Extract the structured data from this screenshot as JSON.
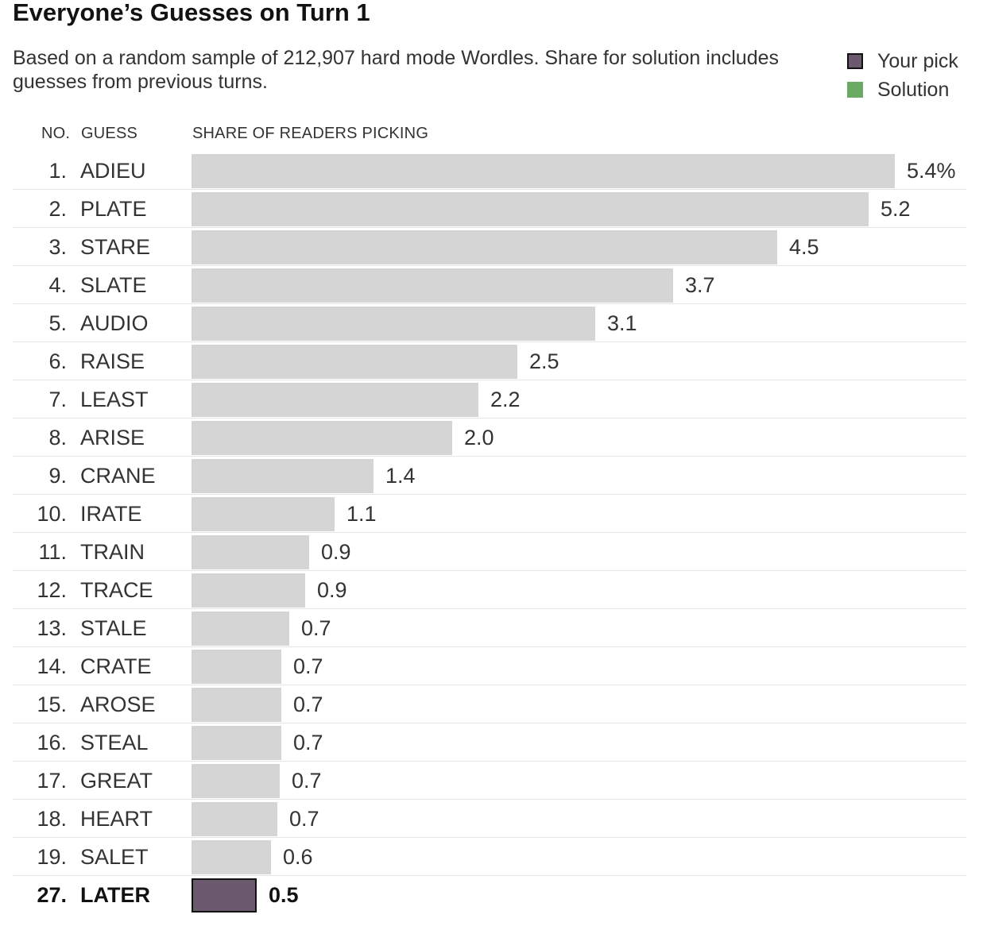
{
  "title": "Everyone’s Guesses on Turn 1",
  "subtitle": "Based on a random sample of 212,907 hard mode Wordles. Share for solution includes guesses from previous turns.",
  "legend": [
    {
      "label": "Your pick",
      "color": "#6b5a6e",
      "kind": "pick"
    },
    {
      "label": "Solution",
      "color": "#6aaa64",
      "kind": "solution"
    }
  ],
  "headers": {
    "no": "NO.",
    "guess": "GUESS",
    "share": "SHARE OF READERS PICKING"
  },
  "chart_data": {
    "type": "bar",
    "orientation": "horizontal",
    "unit": "%",
    "xlim": [
      0,
      5.4
    ],
    "rows": [
      {
        "rank": "1.",
        "word": "ADIEU",
        "value": 5.4,
        "label": "5.4%"
      },
      {
        "rank": "2.",
        "word": "PLATE",
        "value": 5.2,
        "label": "5.2"
      },
      {
        "rank": "3.",
        "word": "STARE",
        "value": 4.5,
        "label": "4.5"
      },
      {
        "rank": "4.",
        "word": "SLATE",
        "value": 3.7,
        "label": "3.7"
      },
      {
        "rank": "5.",
        "word": "AUDIO",
        "value": 3.1,
        "label": "3.1"
      },
      {
        "rank": "6.",
        "word": "RAISE",
        "value": 2.5,
        "label": "2.5"
      },
      {
        "rank": "7.",
        "word": "LEAST",
        "value": 2.2,
        "label": "2.2"
      },
      {
        "rank": "8.",
        "word": "ARISE",
        "value": 2.0,
        "label": "2.0"
      },
      {
        "rank": "9.",
        "word": "CRANE",
        "value": 1.4,
        "label": "1.4"
      },
      {
        "rank": "10.",
        "word": "IRATE",
        "value": 1.1,
        "label": "1.1"
      },
      {
        "rank": "11.",
        "word": "TRAIN",
        "value": 0.9,
        "label": "0.9"
      },
      {
        "rank": "12.",
        "word": "TRACE",
        "value": 0.87,
        "label": "0.9"
      },
      {
        "rank": "13.",
        "word": "STALE",
        "value": 0.75,
        "label": "0.7"
      },
      {
        "rank": "14.",
        "word": "CRATE",
        "value": 0.69,
        "label": "0.7"
      },
      {
        "rank": "15.",
        "word": "AROSE",
        "value": 0.69,
        "label": "0.7"
      },
      {
        "rank": "16.",
        "word": "STEAL",
        "value": 0.69,
        "label": "0.7"
      },
      {
        "rank": "17.",
        "word": "GREAT",
        "value": 0.68,
        "label": "0.7"
      },
      {
        "rank": "18.",
        "word": "HEART",
        "value": 0.66,
        "label": "0.7"
      },
      {
        "rank": "19.",
        "word": "SALET",
        "value": 0.61,
        "label": "0.6"
      },
      {
        "rank": "27.",
        "word": "LATER",
        "value": 0.5,
        "label": "0.5",
        "highlight": "pick"
      }
    ]
  }
}
